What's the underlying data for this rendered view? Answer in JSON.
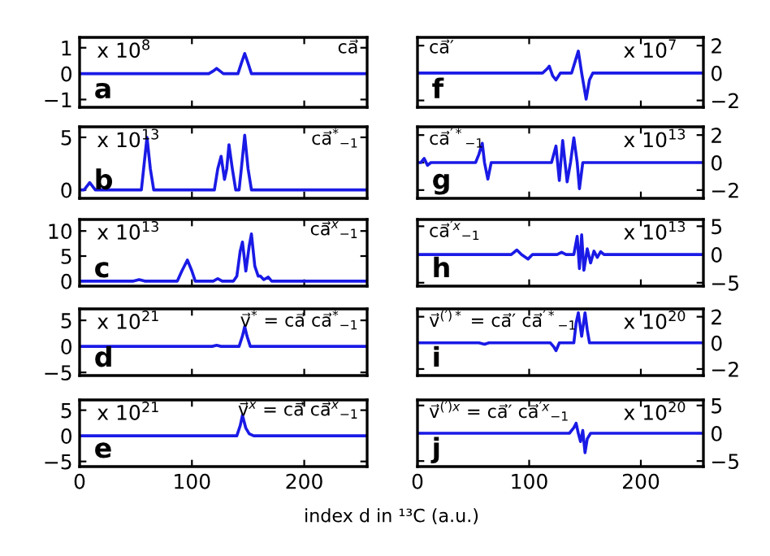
{
  "chart_data": [
    {
      "type": "line",
      "x": [
        0,
        115,
        119,
        122,
        125,
        128,
        141,
        144,
        147,
        150,
        153,
        256
      ],
      "series": [
        {
          "color": "#1a1ae6",
          "values": [
            0,
            0,
            0.1,
            0.2,
            0.1,
            0,
            0,
            0.4,
            0.78,
            0.4,
            0,
            0
          ]
        }
      ],
      "xlim": [
        0,
        256
      ],
      "xticks": [
        0,
        100,
        200
      ],
      "ylim": [
        -1.3,
        1.4
      ],
      "yticks": [
        -1,
        0,
        1
      ],
      "tick_labels": "y",
      "annotations": [
        "x 10$^{8}$",
        "ca⃗",
        "a"
      ]
    },
    {
      "type": "line",
      "x": [
        0,
        112,
        116,
        118,
        121,
        124,
        128,
        138,
        141,
        144,
        147,
        151,
        154,
        157,
        256
      ],
      "series": [
        {
          "color": "#1a1ae6",
          "values": [
            0,
            0,
            0.3,
            0.5,
            -0.2,
            -0.5,
            0,
            0,
            0.8,
            1.6,
            0,
            -1.9,
            -0.5,
            0,
            0
          ]
        }
      ],
      "xlim": [
        0,
        256
      ],
      "xticks": [
        0,
        100,
        200
      ],
      "ylim": [
        -2.5,
        2.6
      ],
      "yticks": [
        -2,
        0,
        2
      ],
      "tick_labels": "y",
      "annotations": [
        "x 10$^{7}$",
        "ca⃗′",
        "f"
      ]
    },
    {
      "type": "line",
      "x": [
        0,
        4,
        9,
        14,
        55,
        57,
        60,
        63,
        66,
        120,
        123,
        126,
        129,
        131,
        133,
        136,
        139,
        142,
        144,
        147,
        150,
        153,
        256
      ],
      "series": [
        {
          "color": "#1a1ae6",
          "values": [
            0,
            0,
            0.7,
            0,
            0,
            2,
            5,
            2,
            0,
            0,
            2,
            3.2,
            1,
            2,
            4.3,
            2,
            0,
            0,
            2,
            5.2,
            2,
            0,
            0
          ]
        }
      ],
      "xlim": [
        0,
        256
      ],
      "xticks": [
        0,
        100,
        200
      ],
      "ylim": [
        -0.8,
        6
      ],
      "yticks": [
        0,
        5
      ],
      "tick_labels": "y",
      "annotations": [
        "x 10$^{13}$",
        "ca⃗$^{*}$$_{−1}$",
        "b"
      ]
    },
    {
      "type": "line",
      "x": [
        0,
        3,
        6,
        9,
        12,
        52,
        55,
        58,
        60,
        63,
        66,
        120,
        124,
        127,
        130,
        134,
        137,
        140,
        143,
        145,
        148,
        256
      ],
      "series": [
        {
          "color": "#1a1ae6",
          "values": [
            0,
            0,
            0.3,
            -0.2,
            0,
            0,
            0.6,
            1.4,
            0,
            -1.2,
            0,
            0,
            1.2,
            -1.3,
            1.6,
            -1.4,
            0,
            1.8,
            0,
            -1.9,
            0,
            0
          ]
        }
      ],
      "xlim": [
        0,
        256
      ],
      "xticks": [
        0,
        100,
        200
      ],
      "ylim": [
        -2.6,
        2.6
      ],
      "yticks": [
        -2,
        0,
        2
      ],
      "tick_labels": "y",
      "annotations": [
        "x 10$^{13}$",
        "ca⃗$^{′*}$$_{−1}$",
        "g"
      ]
    },
    {
      "type": "line",
      "x": [
        0,
        48,
        53,
        58,
        87,
        91,
        96,
        100,
        103,
        119,
        123,
        127,
        137,
        140,
        143,
        145,
        148,
        151,
        153,
        156,
        159,
        161,
        164,
        168,
        171,
        256
      ],
      "series": [
        {
          "color": "#1a1ae6",
          "values": [
            0,
            0,
            0.3,
            0,
            0,
            2,
            4.2,
            2,
            0,
            0,
            0.5,
            0,
            0,
            1,
            6,
            7.8,
            2,
            7,
            9.4,
            3,
            1,
            1,
            0.3,
            0.8,
            0,
            0
          ]
        }
      ],
      "xlim": [
        0,
        256
      ],
      "xticks": [
        0,
        100,
        200
      ],
      "ylim": [
        -1,
        12.3
      ],
      "yticks": [
        0,
        5,
        10
      ],
      "tick_labels": "y",
      "annotations": [
        "x 10$^{13}$",
        "ca⃗$^{x}$$_{−1}$",
        "c"
      ]
    },
    {
      "type": "line",
      "x": [
        0,
        84,
        89,
        93,
        99,
        103,
        125,
        129,
        133,
        140,
        143,
        145,
        147,
        149,
        152,
        155,
        158,
        161,
        164,
        167,
        256
      ],
      "series": [
        {
          "color": "#1a1ae6",
          "values": [
            0,
            0,
            0.8,
            0,
            -0.8,
            0,
            0,
            0.4,
            0,
            0,
            3.2,
            -2.5,
            3.5,
            -2.8,
            1,
            -1.5,
            0.6,
            -0.5,
            0.5,
            0,
            0
          ]
        }
      ],
      "xlim": [
        0,
        256
      ],
      "xticks": [
        0,
        100,
        200
      ],
      "ylim": [
        -5.6,
        6.2
      ],
      "yticks": [
        -5,
        0,
        5
      ],
      "tick_labels": "y",
      "annotations": [
        "x 10$^{13}$",
        "ca⃗$^{′x}$$_{−1}$",
        "h"
      ]
    },
    {
      "type": "line",
      "x": [
        0,
        118,
        122,
        126,
        142,
        145,
        147,
        149,
        152,
        256
      ],
      "series": [
        {
          "color": "#1a1ae6",
          "values": [
            0,
            0,
            0.2,
            0,
            0,
            2,
            3.8,
            2,
            0,
            0
          ]
        }
      ],
      "xlim": [
        0,
        256
      ],
      "xticks": [
        0,
        100,
        200
      ],
      "ylim": [
        -5.6,
        7.2
      ],
      "yticks": [
        -5,
        0,
        5
      ],
      "tick_labels": "y",
      "annotations": [
        "x 10$^{21}$",
        "v⃗$^{*}$ = ca⃗ ca⃗$^{*}$$_{−1}$",
        "d"
      ]
    },
    {
      "type": "line",
      "x": [
        0,
        55,
        60,
        64,
        119,
        122,
        124,
        127,
        140,
        142,
        144,
        147,
        150,
        152,
        154,
        256
      ],
      "series": [
        {
          "color": "#1a1ae6",
          "values": [
            0,
            0,
            -0.1,
            0,
            0,
            -0.3,
            -0.6,
            0,
            0,
            1.5,
            2.3,
            0.5,
            2.3,
            1,
            0,
            0
          ]
        }
      ],
      "xlim": [
        0,
        256
      ],
      "xticks": [
        0,
        100,
        200
      ],
      "ylim": [
        -2.5,
        2.6
      ],
      "yticks": [
        -2,
        0,
        2
      ],
      "tick_labels": "y",
      "annotations": [
        "x 10$^{20}$",
        "v⃗$^{(′)*}$ = ca⃗′ ca⃗$^{′*}$$_{−1}$",
        "i"
      ]
    },
    {
      "type": "line",
      "x": [
        0,
        140,
        143,
        145,
        148,
        151,
        155,
        256
      ],
      "series": [
        {
          "color": "#1a1ae6",
          "values": [
            0,
            0,
            2,
            4,
            1.5,
            0.4,
            0,
            0
          ]
        }
      ],
      "xlim": [
        0,
        256
      ],
      "xticks": [
        0,
        100,
        200
      ],
      "ylim": [
        -6,
        7
      ],
      "yticks": [
        -5,
        0,
        5
      ],
      "xlabel": "index d in ¹³C (a.u.)",
      "annotations": [
        "x 10$^{21}$",
        "v⃗$^{x}$ = ca⃗ ca⃗$^{x}$$_{−1}$",
        "e"
      ]
    },
    {
      "type": "line",
      "x": [
        0,
        136,
        140,
        142,
        144,
        146,
        148,
        150,
        152,
        155,
        256
      ],
      "series": [
        {
          "color": "#1a1ae6",
          "values": [
            0,
            0,
            1,
            1.8,
            0,
            -1.5,
            0.5,
            -3.5,
            -1,
            0,
            0
          ]
        }
      ],
      "xlim": [
        0,
        256
      ],
      "xticks": [
        0,
        100,
        200
      ],
      "ylim": [
        -6,
        6
      ],
      "yticks": [
        -5,
        0,
        5
      ],
      "annotations": [
        "x 10$^{20}$",
        "v⃗$^{(′)x}$ = ca⃗′ ca⃗$^{′x}$$_{−1}$",
        "j"
      ]
    }
  ]
}
